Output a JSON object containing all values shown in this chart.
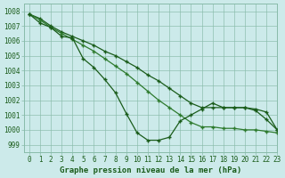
{
  "title": "Graphe pression niveau de la mer (hPa)",
  "background_color": "#cceaea",
  "grid_color": "#88bbaa",
  "line_color1": "#1a5c1a",
  "line_color2": "#2d7a2d",
  "xlim": [
    -0.5,
    23
  ],
  "ylim": [
    998.5,
    1008.5
  ],
  "yticks": [
    999,
    1000,
    1001,
    1002,
    1003,
    1004,
    1005,
    1006,
    1007,
    1008
  ],
  "xticks": [
    0,
    1,
    2,
    3,
    4,
    5,
    6,
    7,
    8,
    9,
    10,
    11,
    12,
    13,
    14,
    15,
    16,
    17,
    18,
    19,
    20,
    21,
    22,
    23
  ],
  "series1_x": [
    0,
    1,
    2,
    3,
    4,
    5,
    6,
    7,
    8,
    9,
    10,
    11,
    12,
    13,
    14,
    15,
    16,
    17,
    18,
    19,
    20,
    21,
    22,
    23
  ],
  "series1_y": [
    1007.8,
    1007.5,
    1007.0,
    1006.6,
    1006.3,
    1006.0,
    1005.7,
    1005.3,
    1005.0,
    1004.6,
    1004.2,
    1003.7,
    1003.3,
    1002.8,
    1002.3,
    1001.8,
    1001.5,
    1001.5,
    1001.5,
    1001.5,
    1001.5,
    1001.4,
    1001.2,
    1000.0
  ],
  "series2_x": [
    0,
    1,
    2,
    3,
    4,
    5,
    6,
    7,
    8,
    9,
    10,
    11,
    12,
    13,
    14,
    15,
    16,
    17,
    18,
    19,
    20,
    21,
    22,
    23
  ],
  "series2_y": [
    1007.8,
    1007.4,
    1006.9,
    1006.5,
    1006.1,
    1005.7,
    1005.3,
    1004.8,
    1004.3,
    1003.8,
    1003.2,
    1002.6,
    1002.0,
    1001.5,
    1001.0,
    1000.5,
    1000.2,
    1000.2,
    1000.1,
    1000.1,
    1000.0,
    1000.0,
    999.9,
    999.8
  ],
  "series3_x": [
    0,
    1,
    2,
    3,
    4,
    5,
    6,
    7,
    8,
    9,
    10,
    11,
    12,
    13,
    14,
    15,
    16,
    17,
    18,
    19,
    20,
    21,
    22,
    23
  ],
  "series3_y": [
    1007.8,
    1007.2,
    1006.9,
    1006.3,
    1006.2,
    1004.8,
    1004.2,
    1003.4,
    1002.5,
    1001.1,
    999.8,
    999.3,
    999.3,
    999.5,
    1000.6,
    1001.0,
    1001.4,
    1001.8,
    1001.5,
    1001.5,
    1001.5,
    1001.3,
    1000.7,
    1000.0
  ],
  "marker": "+",
  "marker_size": 3,
  "line_width": 0.9,
  "font_size_ticks": 5.5,
  "font_size_label": 6.5
}
